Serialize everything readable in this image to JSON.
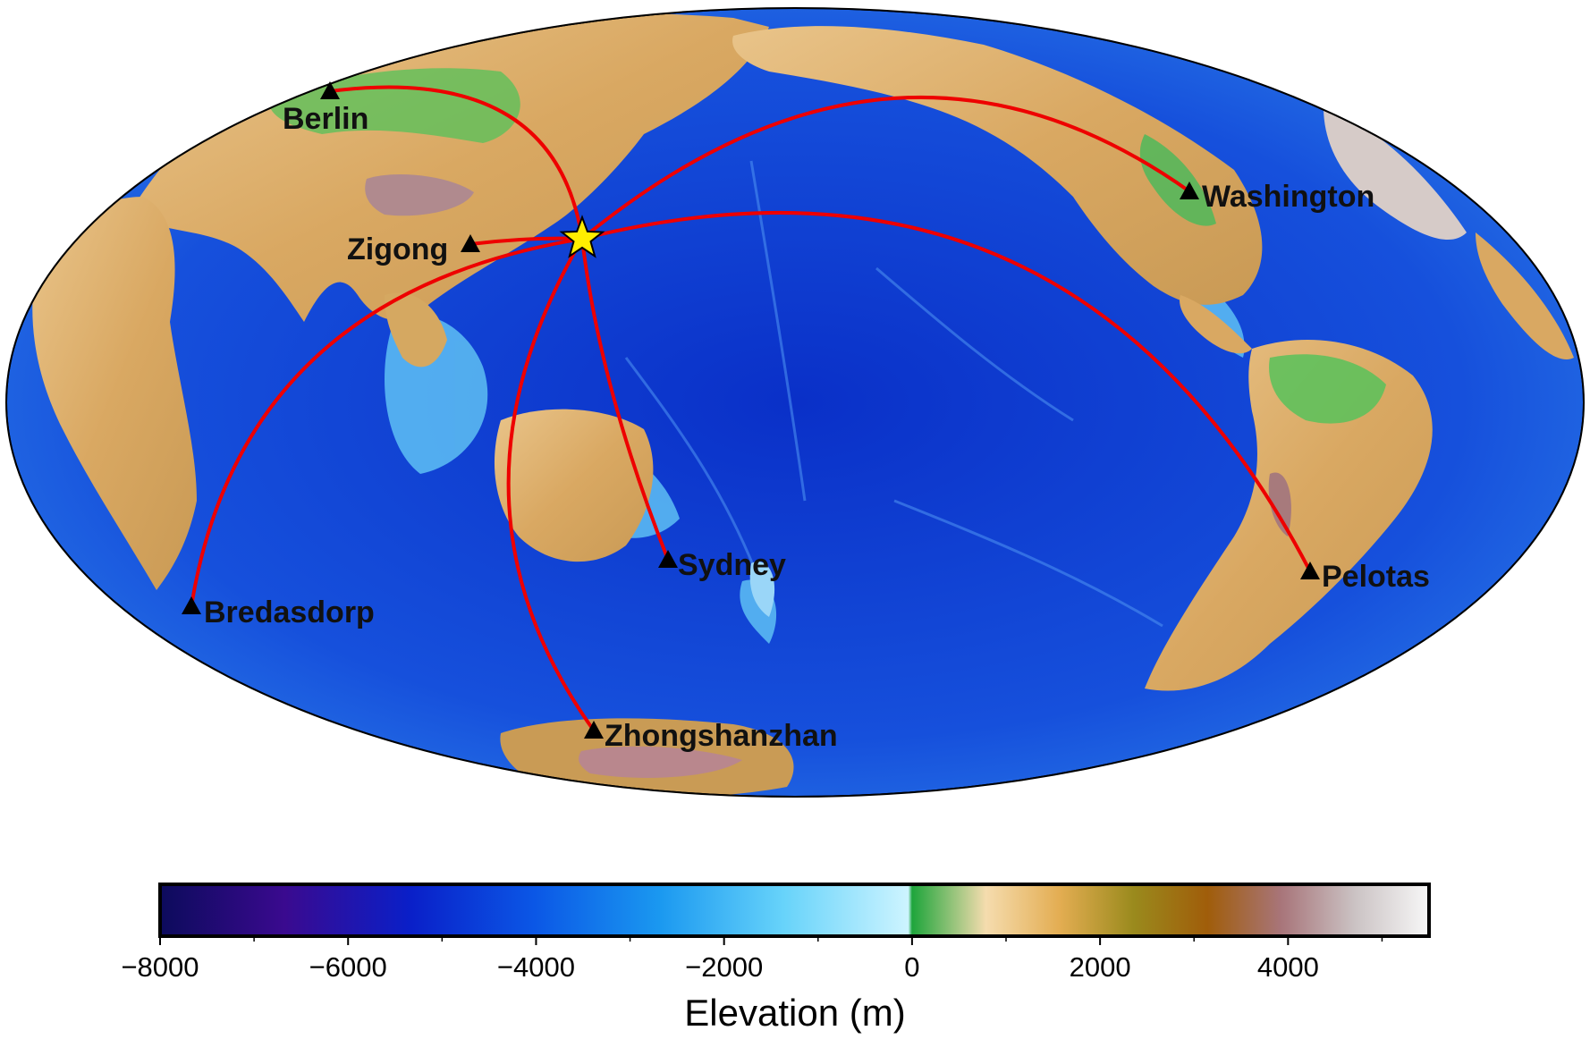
{
  "map": {
    "projection": "hammer",
    "epicenter": {
      "symbol": "star-icon",
      "color": "#ffee00"
    },
    "path_color": "#ee0000",
    "stations": [
      {
        "name": "Berlin"
      },
      {
        "name": "Zigong"
      },
      {
        "name": "Washington"
      },
      {
        "name": "Pelotas"
      },
      {
        "name": "Sydney"
      },
      {
        "name": "Bredasdorp"
      },
      {
        "name": "Zhongshanzhan"
      }
    ]
  },
  "colorbar": {
    "title": "Elevation (m)",
    "range": [
      -8000,
      5500
    ],
    "tick_labels": [
      "−8000",
      "−6000",
      "−4000",
      "−2000",
      "0",
      "2000",
      "4000"
    ],
    "colors": [
      "#0c0b5c",
      "#3a0a8f",
      "#0a1fc8",
      "#0b57e6",
      "#1a98f0",
      "#67d3fa",
      "#cdf4ff",
      "#1ea53b",
      "#f5dcae",
      "#e3ad52",
      "#9a8a1d",
      "#a05d0a",
      "#a8757a",
      "#cbc3c4",
      "#f7f7f7"
    ]
  }
}
